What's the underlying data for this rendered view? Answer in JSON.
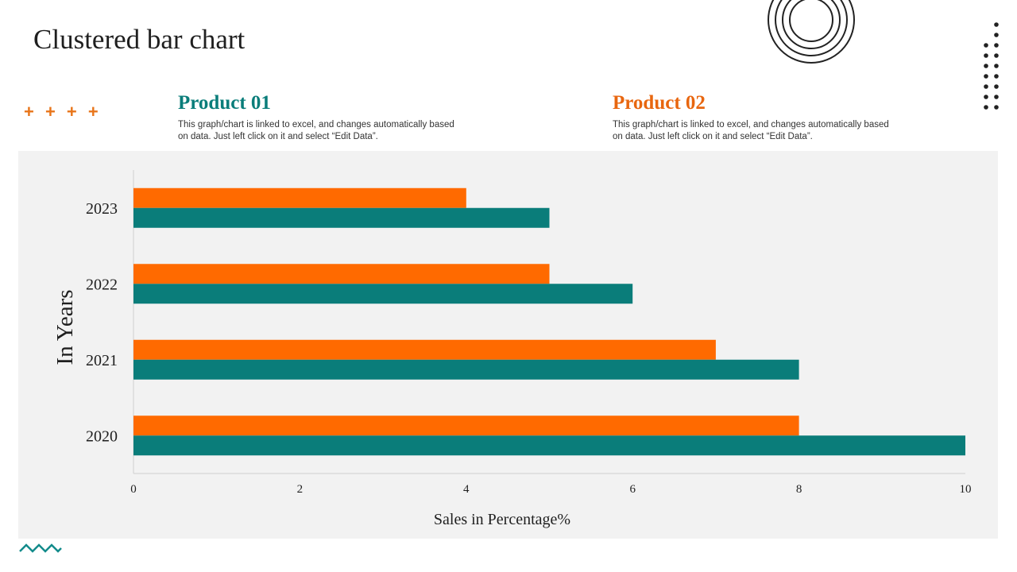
{
  "slide": {
    "title": "Clustered bar chart",
    "decoration": "+ + + +"
  },
  "products": [
    {
      "title": "Product 01",
      "color": "#0a7d7a",
      "description": "This graph/chart is linked to excel, and changes automatically based on data. Just left click on it and select “Edit Data”."
    },
    {
      "title": "Product 02",
      "color": "#e8660f",
      "description": "This graph/chart is linked to excel, and changes automatically based on data. Just left click on it and select “Edit Data”."
    }
  ],
  "colors": {
    "product01": "#0a7d7a",
    "product02": "#ff6a00",
    "panel": "#f2f2f2",
    "accent_orange": "#e8751a",
    "accent_teal": "#138b8b"
  },
  "chart_data": {
    "type": "bar",
    "orientation": "horizontal",
    "categories": [
      "2020",
      "2021",
      "2022",
      "2023"
    ],
    "series": [
      {
        "name": "Product 01",
        "color": "#0a7d7a",
        "values": [
          10,
          8,
          6,
          5
        ]
      },
      {
        "name": "Product 02",
        "color": "#ff6a00",
        "values": [
          8,
          7,
          5,
          4
        ]
      }
    ],
    "title": "Clustered bar chart",
    "xlabel": "Sales in Percentage%",
    "ylabel": "In Years",
    "xlim": [
      0,
      10
    ],
    "xticks": [
      0,
      2,
      4,
      6,
      8,
      10
    ],
    "grid": false,
    "legend": "none"
  }
}
